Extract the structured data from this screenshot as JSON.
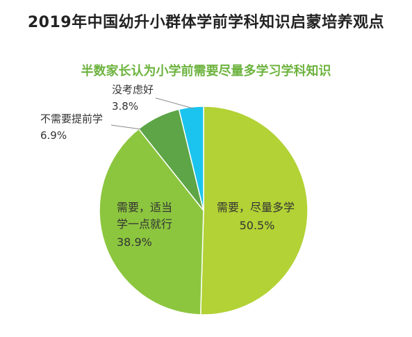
{
  "title": "2019年中国幼升小群体学前学科知识启蒙培养观点",
  "colors": {
    "subtitle": "#6DB33F",
    "leader": "#888888",
    "separator": "#ffffff"
  },
  "chart_data": {
    "type": "pie",
    "title": "半数家长认为小学前需要尽量多学习学科知识",
    "unit": "%",
    "start": "top, clockwise",
    "slices": [
      {
        "name": "需要，尽量多学",
        "value": 50.5,
        "label": "50.5%",
        "color": "#B2D235",
        "label_lines": [
          "需要，尽量多学"
        ]
      },
      {
        "name": "需要，适当学一点就行",
        "value": 38.9,
        "label": "38.9%",
        "color": "#8CC63F",
        "label_lines": [
          "需要，适当",
          "学一点就行"
        ]
      },
      {
        "name": "不需要提前学",
        "value": 6.9,
        "label": "6.9%",
        "color": "#5DA546",
        "label_lines": [
          "不需要提前学"
        ]
      },
      {
        "name": "没考虑好",
        "value": 3.8,
        "label": "3.8%",
        "color": "#1BC4EE",
        "label_lines": [
          "没考虑好"
        ]
      }
    ]
  }
}
